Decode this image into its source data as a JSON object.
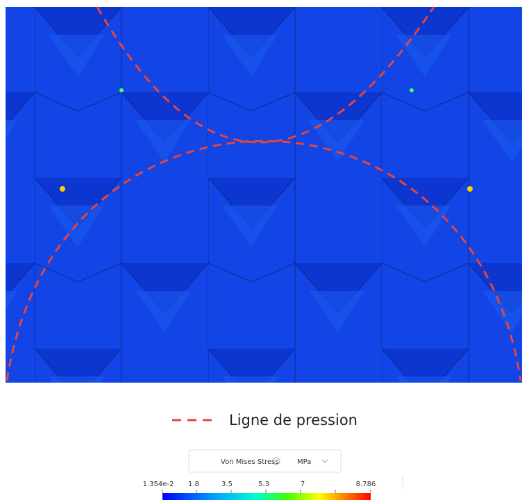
{
  "legend": {
    "label": "Ligne de pression"
  },
  "colorbar": {
    "quantity": "Von Mises Stress",
    "unit": "MPa",
    "ticks": [
      "1.354e-2",
      "1.8",
      "3.5",
      "5.3",
      "7",
      "8.786"
    ]
  }
}
